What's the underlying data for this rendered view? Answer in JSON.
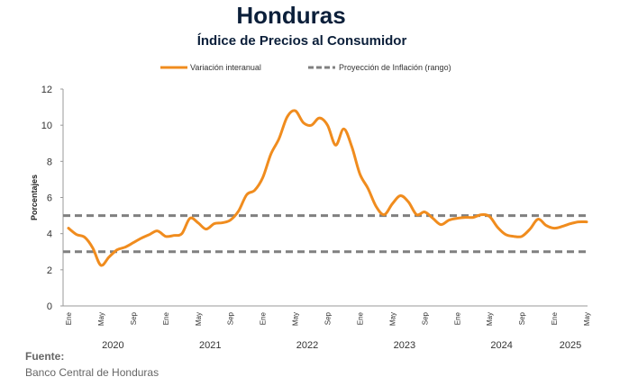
{
  "title": "Honduras",
  "subtitle": "Índice de Precios al Consumidor",
  "source": {
    "label": "Fuente:",
    "text": "Banco Central de Honduras"
  },
  "colors": {
    "series": "#f08c1e",
    "band": "#808080",
    "title": "#0b1f3a"
  },
  "chart_data": {
    "type": "line",
    "ylabel": "Porcentajes",
    "ylim": [
      0,
      12
    ],
    "y_ticks": [
      "0",
      "2",
      "4",
      "6",
      "8",
      "10",
      "12"
    ],
    "grid": false,
    "legend_position": "top",
    "month_tick_labels": [
      "Ene",
      "May",
      "Sep"
    ],
    "years": [
      "2020",
      "2021",
      "2022",
      "2023",
      "2024",
      "2025"
    ],
    "x_start": "2020-01",
    "x_end": "2025-05",
    "series": [
      {
        "name": "Variación interanual",
        "style": "solid",
        "x": [
          "2020-01",
          "2020-02",
          "2020-03",
          "2020-04",
          "2020-05",
          "2020-06",
          "2020-07",
          "2020-08",
          "2020-09",
          "2020-10",
          "2020-11",
          "2020-12",
          "2021-01",
          "2021-02",
          "2021-03",
          "2021-04",
          "2021-05",
          "2021-06",
          "2021-07",
          "2021-08",
          "2021-09",
          "2021-10",
          "2021-11",
          "2021-12",
          "2022-01",
          "2022-02",
          "2022-03",
          "2022-04",
          "2022-05",
          "2022-06",
          "2022-07",
          "2022-08",
          "2022-09",
          "2022-10",
          "2022-11",
          "2022-12",
          "2023-01",
          "2023-02",
          "2023-03",
          "2023-04",
          "2023-05",
          "2023-06",
          "2023-07",
          "2023-08",
          "2023-09",
          "2023-10",
          "2023-11",
          "2023-12",
          "2024-01",
          "2024-02",
          "2024-03",
          "2024-04",
          "2024-05",
          "2024-06",
          "2024-07",
          "2024-08",
          "2024-09",
          "2024-10",
          "2024-11",
          "2024-12",
          "2025-01",
          "2025-02",
          "2025-03",
          "2025-04",
          "2025-05"
        ],
        "values": [
          4.3,
          3.95,
          3.8,
          3.2,
          2.25,
          2.7,
          3.1,
          3.25,
          3.5,
          3.75,
          3.95,
          4.15,
          3.85,
          3.9,
          4.0,
          4.85,
          4.6,
          4.25,
          4.55,
          4.6,
          4.75,
          5.25,
          6.15,
          6.4,
          7.1,
          8.4,
          9.25,
          10.45,
          10.8,
          10.15,
          10.0,
          10.4,
          10.0,
          8.9,
          9.8,
          8.8,
          7.3,
          6.5,
          5.5,
          5.05,
          5.65,
          6.1,
          5.75,
          5.05,
          5.2,
          4.85,
          4.5,
          4.75,
          4.85,
          4.9,
          4.9,
          5.05,
          4.95,
          4.35,
          3.95,
          3.85,
          3.85,
          4.25,
          4.8,
          4.45,
          4.3,
          4.4,
          4.55,
          4.65,
          4.65
        ]
      },
      {
        "name": "Proyección de Inflación (rango)",
        "style": "dashed",
        "bounds": [
          3,
          5
        ]
      }
    ]
  }
}
